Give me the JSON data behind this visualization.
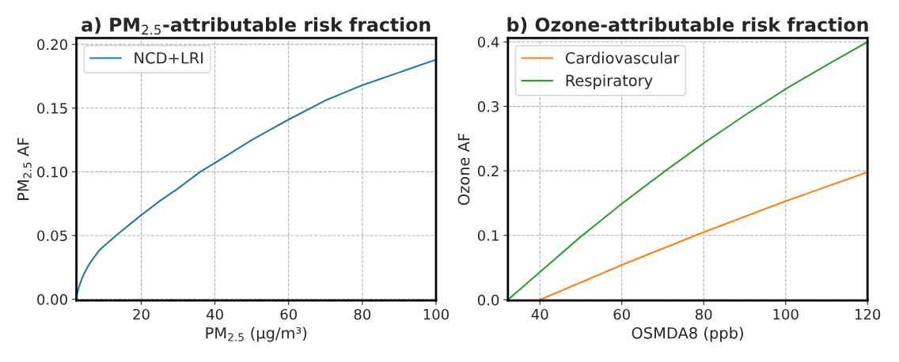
{
  "chart_data": [
    {
      "type": "line",
      "title": "a) PM$_{2.5}$-attributable risk fraction",
      "xlabel": "PM$_{2.5}$ (μg/m³)",
      "ylabel": "PM$_{2.5}$ AF",
      "xlim": [
        2.4,
        100
      ],
      "xticks": [
        20,
        40,
        60,
        80,
        100
      ],
      "ylim": [
        -0.001,
        0.205
      ],
      "yticks": [
        {
          "value": 0,
          "label": "0.00"
        },
        0.05,
        {
          "value": 0.1,
          "label": "0.10"
        },
        0.15,
        {
          "value": 0.2,
          "label": "0.20"
        }
      ],
      "grid": true,
      "legend": "top left",
      "line_style": "solid",
      "marker": "none",
      "series": [
        {
          "name": "NCD+LRI",
          "color": "#1f77b4",
          "x": [
            2.4,
            2.6,
            3,
            3.5,
            4,
            5,
            6,
            7,
            8.5,
            10,
            12,
            14,
            17,
            20,
            25,
            30,
            36,
            40,
            45,
            50,
            55,
            60,
            66,
            70,
            75,
            80,
            85,
            90,
            95,
            100
          ],
          "values": [
            0,
            0.004,
            0.009,
            0.013,
            0.017,
            0.023,
            0.028,
            0.032,
            0.038,
            0.042,
            0.047,
            0.052,
            0.059,
            0.066,
            0.077,
            0.087,
            0.1,
            0.107,
            0.116,
            0.125,
            0.133,
            0.141,
            0.15,
            0.156,
            0.162,
            0.168,
            0.173,
            0.178,
            0.183,
            0.188
          ]
        }
      ]
    },
    {
      "type": "line",
      "title": "b) Ozone-attributable risk fraction",
      "xlabel": "OSMDA8 (ppb)",
      "ylabel": "Ozone AF",
      "xlim": [
        32.2,
        120
      ],
      "xticks": [
        40,
        60,
        80,
        100,
        120
      ],
      "ylim": [
        -0.001,
        0.406
      ],
      "yticks": [
        {
          "value": 0,
          "label": "0.0"
        },
        0.1,
        0.2,
        0.3,
        0.4
      ],
      "grid": true,
      "legend": "top left",
      "line_style": "solid",
      "marker": "none",
      "series": [
        {
          "name": "Cardiovascular",
          "color": "#ff7f0e",
          "x": [
            40,
            60,
            80,
            100,
            120
          ],
          "values": [
            0,
            0.054,
            0.105,
            0.153,
            0.198
          ]
        },
        {
          "name": "Respiratory",
          "color": "#2ca02c",
          "x": [
            32.2,
            40,
            50,
            60,
            70,
            80,
            90,
            100,
            110,
            120
          ],
          "values": [
            0,
            0.043,
            0.098,
            0.149,
            0.197,
            0.243,
            0.286,
            0.327,
            0.364,
            0.4
          ]
        }
      ]
    }
  ]
}
